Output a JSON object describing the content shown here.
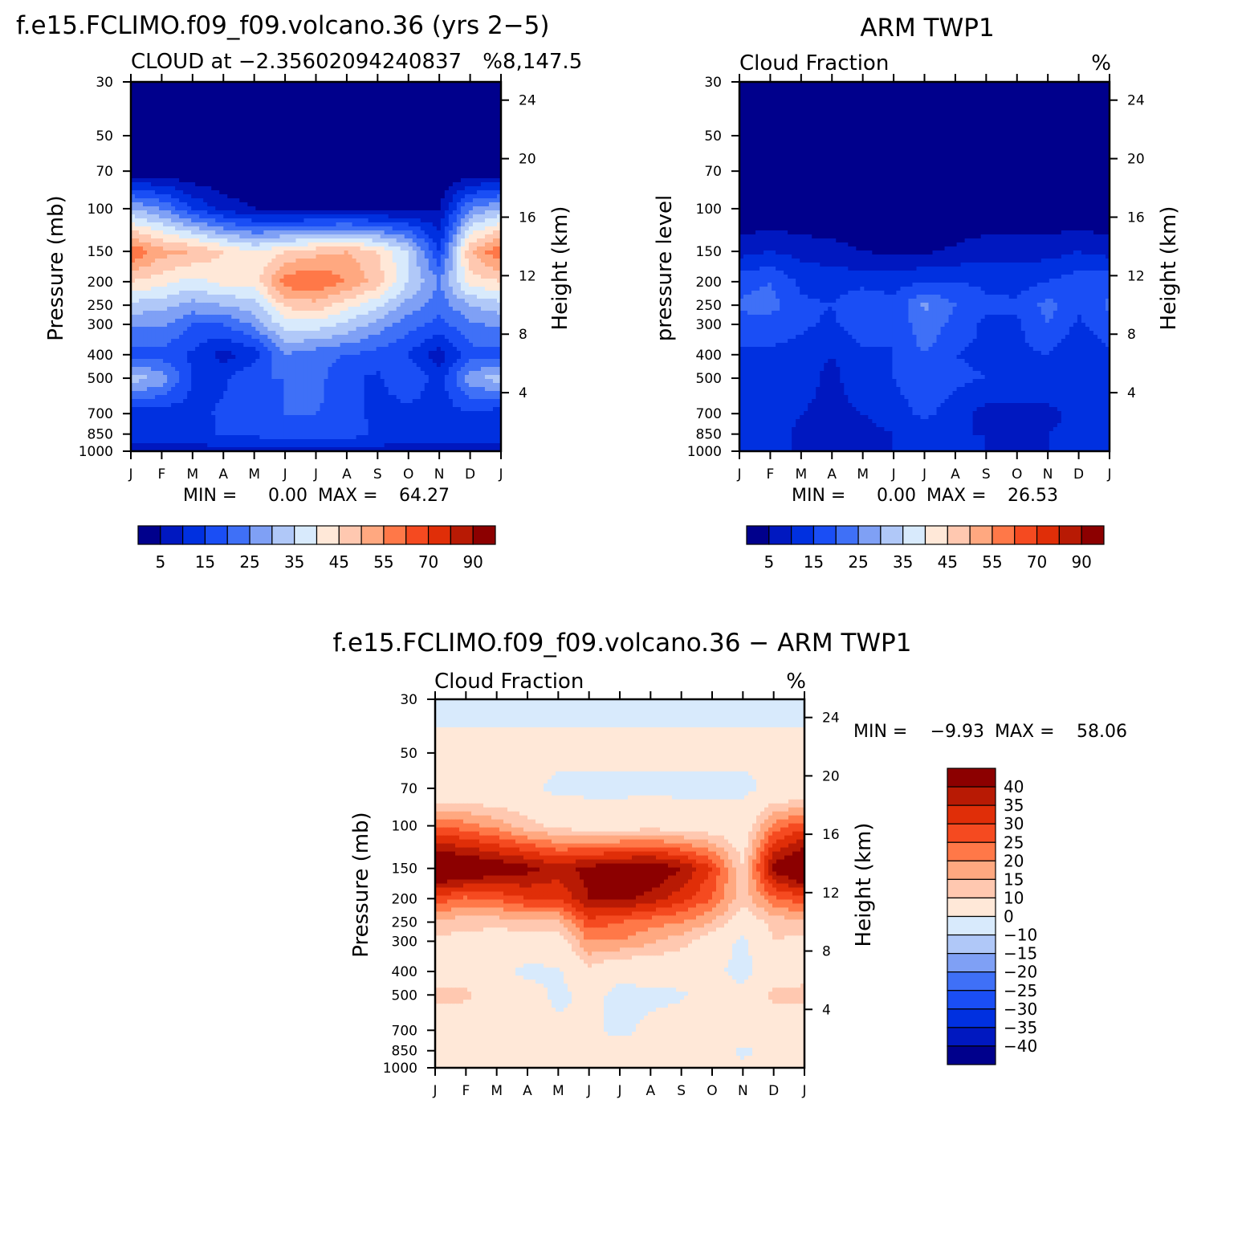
{
  "chart_data": [
    {
      "type": "heatmap",
      "title": "f.e15.FCLIMO.f09_f09.volcano.36 (yrs 2−5)",
      "subtitle_left": "CLOUD at −2.35602094240837",
      "subtitle_right": "8,147.5",
      "units": "%",
      "ylabel": "Pressure (mb)",
      "ylabel_right": "Height (km)",
      "y_ticks": [
        "30",
        "50",
        "70",
        "100",
        "150",
        "200",
        "250",
        "300",
        "400",
        "500",
        "700",
        "850",
        "1000"
      ],
      "y_ticks_right": [
        "24",
        "20",
        "16",
        "12",
        "8",
        "4"
      ],
      "x_ticks": [
        "J",
        "F",
        "M",
        "A",
        "M",
        "J",
        "J",
        "A",
        "S",
        "O",
        "N",
        "D",
        "J"
      ],
      "min_label": "MIN =",
      "min_value": "0.00",
      "max_label": "MAX =",
      "max_value": "64.27",
      "colorbar_levels": [
        5,
        10,
        15,
        20,
        25,
        30,
        35,
        40,
        45,
        50,
        55,
        60,
        70,
        80,
        90
      ],
      "colorbar_tick_labels": [
        "5",
        "15",
        "25",
        "35",
        "45",
        "55",
        "70",
        "90"
      ],
      "pressure_levels": [
        30,
        50,
        70,
        100,
        150,
        200,
        250,
        300,
        400,
        500,
        700,
        850,
        1000
      ],
      "values": [
        [
          0,
          0,
          0,
          0,
          0,
          0,
          0,
          0,
          0,
          0,
          0,
          0,
          0
        ],
        [
          0,
          0,
          0,
          0,
          0,
          0,
          0,
          0,
          0,
          0,
          0,
          0,
          0
        ],
        [
          1,
          1,
          0,
          0,
          0,
          0,
          0,
          0,
          0,
          0,
          0,
          1,
          1
        ],
        [
          30,
          25,
          15,
          8,
          5,
          3,
          3,
          3,
          3,
          3,
          5,
          25,
          30
        ],
        [
          60,
          52,
          50,
          45,
          40,
          45,
          48,
          50,
          45,
          35,
          15,
          50,
          60
        ],
        [
          45,
          42,
          38,
          42,
          42,
          58,
          60,
          55,
          48,
          35,
          25,
          42,
          45
        ],
        [
          33,
          32,
          28,
          30,
          33,
          46,
          48,
          42,
          36,
          28,
          22,
          30,
          33
        ],
        [
          26,
          26,
          20,
          20,
          26,
          38,
          38,
          34,
          28,
          22,
          18,
          24,
          26
        ],
        [
          18,
          18,
          14,
          8,
          12,
          25,
          22,
          20,
          18,
          15,
          7,
          18,
          18
        ],
        [
          33,
          28,
          15,
          14,
          20,
          20,
          22,
          16,
          14,
          20,
          12,
          28,
          33
        ],
        [
          12,
          12,
          13,
          16,
          18,
          20,
          20,
          18,
          13,
          13,
          13,
          14,
          12
        ],
        [
          12,
          12,
          12,
          16,
          16,
          19,
          19,
          18,
          14,
          12,
          12,
          12,
          12
        ],
        [
          8,
          8,
          8,
          8,
          8,
          8,
          8,
          8,
          8,
          8,
          8,
          8,
          8
        ]
      ]
    },
    {
      "type": "heatmap",
      "title": "ARM TWP1",
      "subtitle_left": "Cloud Fraction",
      "units": "%",
      "ylabel": "pressure level",
      "ylabel_right": "Height (km)",
      "y_ticks": [
        "30",
        "50",
        "70",
        "100",
        "150",
        "200",
        "250",
        "300",
        "400",
        "500",
        "700",
        "850",
        "1000"
      ],
      "y_ticks_right": [
        "24",
        "20",
        "16",
        "12",
        "8",
        "4"
      ],
      "x_ticks": [
        "J",
        "F",
        "M",
        "A",
        "M",
        "J",
        "J",
        "A",
        "S",
        "O",
        "N",
        "D",
        "J"
      ],
      "min_label": "MIN =",
      "min_value": "0.00",
      "max_label": "MAX =",
      "max_value": "26.53",
      "colorbar_levels": [
        5,
        10,
        15,
        20,
        25,
        30,
        35,
        40,
        45,
        50,
        55,
        60,
        70,
        80,
        90
      ],
      "colorbar_tick_labels": [
        "5",
        "15",
        "25",
        "35",
        "45",
        "55",
        "70",
        "90"
      ],
      "pressure_levels": [
        30,
        50,
        70,
        100,
        150,
        200,
        250,
        300,
        400,
        500,
        700,
        850,
        1000
      ],
      "values": [
        [
          0,
          0,
          0,
          0,
          0,
          0,
          0,
          0,
          0,
          0,
          0,
          0,
          0
        ],
        [
          0,
          0,
          0,
          0,
          0,
          0,
          0,
          0,
          0,
          0,
          0,
          0,
          0
        ],
        [
          0,
          0,
          0,
          0,
          0,
          0,
          0,
          0,
          0,
          0,
          0,
          0,
          0
        ],
        [
          0,
          0,
          0,
          0,
          0,
          0,
          0,
          0,
          0,
          0,
          0,
          0,
          0
        ],
        [
          8,
          10,
          8,
          7,
          5,
          4,
          4,
          6,
          8,
          8,
          8,
          10,
          8
        ],
        [
          18,
          20,
          14,
          13,
          13,
          13,
          15,
          15,
          14,
          13,
          15,
          18,
          18
        ],
        [
          21,
          22,
          16,
          15,
          20,
          16,
          26,
          20,
          16,
          16,
          22,
          16,
          21
        ],
        [
          18,
          18,
          16,
          14,
          18,
          15,
          24,
          18,
          14,
          14,
          20,
          14,
          18
        ],
        [
          14,
          14,
          13,
          10,
          14,
          15,
          20,
          15,
          14,
          14,
          15,
          10,
          14
        ],
        [
          15,
          15,
          13,
          8,
          15,
          15,
          18,
          16,
          15,
          14,
          15,
          15,
          15
        ],
        [
          13,
          13,
          10,
          8,
          10,
          13,
          16,
          13,
          8,
          8,
          8,
          12,
          13
        ],
        [
          12,
          12,
          9,
          8,
          8,
          10,
          12,
          10,
          10,
          9,
          10,
          12,
          12
        ],
        [
          10,
          10,
          10,
          10,
          10,
          10,
          10,
          10,
          10,
          10,
          10,
          10,
          10
        ]
      ]
    },
    {
      "type": "heatmap",
      "title": "f.e15.FCLIMO.f09_f09.volcano.36 − ARM TWP1",
      "subtitle_left": "Cloud Fraction",
      "units": "%",
      "ylabel": "Pressure (mb)",
      "ylabel_right": "Height (km)",
      "y_ticks": [
        "30",
        "50",
        "70",
        "100",
        "150",
        "200",
        "250",
        "300",
        "400",
        "500",
        "700",
        "850",
        "1000"
      ],
      "y_ticks_right": [
        "24",
        "20",
        "16",
        "12",
        "8",
        "4"
      ],
      "x_ticks": [
        "J",
        "F",
        "M",
        "A",
        "M",
        "J",
        "J",
        "A",
        "S",
        "O",
        "N",
        "D",
        "J"
      ],
      "min_label": "MIN =",
      "min_value": "−9.93",
      "max_label": "MAX =",
      "max_value": "58.06",
      "colorbar_levels": [
        -40,
        -35,
        -30,
        -25,
        -20,
        -15,
        -10,
        0,
        10,
        15,
        20,
        25,
        30,
        35,
        40
      ],
      "colorbar_tick_labels": [
        "40",
        "35",
        "30",
        "25",
        "20",
        "15",
        "10",
        "0",
        "−10",
        "−15",
        "−20",
        "−25",
        "−30",
        "−35",
        "−40"
      ],
      "pressure_levels": [
        30,
        50,
        70,
        100,
        150,
        200,
        250,
        300,
        400,
        500,
        700,
        850,
        1000
      ],
      "values": [
        [
          -2,
          -2,
          -2,
          -2,
          -2,
          -2,
          -2,
          -2,
          -2,
          -2,
          -2,
          -2,
          -2
        ],
        [
          2,
          2,
          2,
          2,
          2,
          2,
          2,
          2,
          2,
          2,
          2,
          2,
          2
        ],
        [
          2,
          2,
          2,
          2,
          -2,
          -2,
          -2,
          -2,
          -2,
          -2,
          -2,
          2,
          2
        ],
        [
          25,
          22,
          18,
          12,
          8,
          6,
          6,
          7,
          6,
          5,
          5,
          22,
          28
        ],
        [
          52,
          48,
          45,
          42,
          38,
          42,
          44,
          46,
          40,
          30,
          10,
          42,
          52
        ],
        [
          28,
          24,
          26,
          30,
          30,
          40,
          42,
          38,
          32,
          25,
          12,
          24,
          28
        ],
        [
          14,
          12,
          12,
          14,
          14,
          28,
          25,
          22,
          20,
          15,
          5,
          12,
          14
        ],
        [
          8,
          8,
          6,
          6,
          6,
          20,
          20,
          16,
          12,
          6,
          -2,
          10,
          8
        ],
        [
          4,
          4,
          2,
          -2,
          -1,
          8,
          2,
          4,
          4,
          2,
          -3,
          6,
          4
        ],
        [
          14,
          12,
          2,
          4,
          -2,
          2,
          -2,
          -2,
          -1,
          4,
          2,
          12,
          14
        ],
        [
          1,
          1,
          2,
          4,
          2,
          2,
          -2,
          2,
          4,
          4,
          4,
          2,
          1
        ],
        [
          2,
          1,
          2,
          4,
          4,
          4,
          3,
          4,
          4,
          3,
          -1,
          2,
          2
        ],
        [
          1,
          1,
          1,
          1,
          1,
          1,
          1,
          1,
          1,
          1,
          1,
          1,
          1
        ]
      ]
    }
  ]
}
